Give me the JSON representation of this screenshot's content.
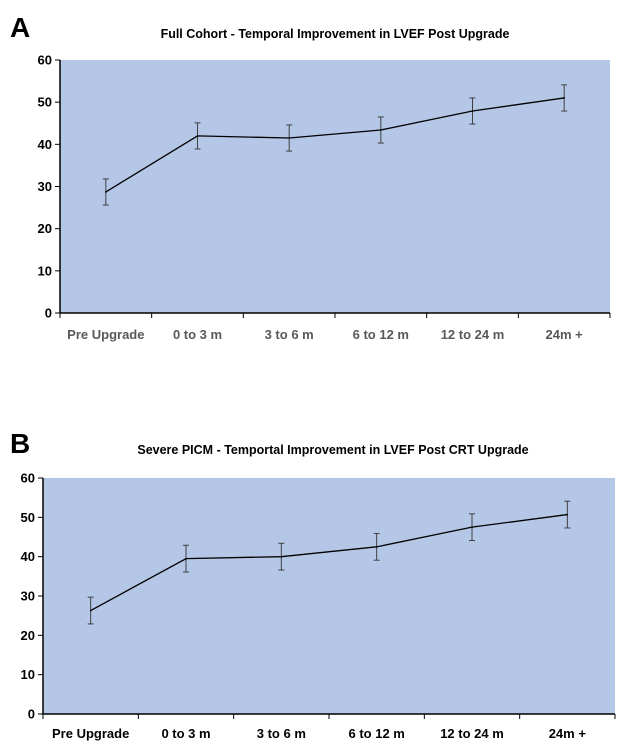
{
  "chart_data": [
    {
      "type": "line",
      "panel_label": "A",
      "title": "Full Cohort - Temporal Improvement in LVEF Post Upgrade",
      "categories": [
        "Pre Upgrade",
        "0 to 3 m",
        "3 to 6 m",
        "6 to 12 m",
        "12 to 24 m",
        "24m +"
      ],
      "values": [
        28.7,
        42,
        41.5,
        43.4,
        47.9,
        51
      ],
      "error": [
        3.1,
        3.1,
        3.1,
        3.1,
        3.1,
        3.1
      ],
      "ylim": [
        0,
        60
      ],
      "yticks": [
        0,
        10,
        20,
        30,
        40,
        50,
        60
      ],
      "ylabel": "",
      "xlabel": "",
      "plot_background": "#b4c7e7",
      "line_color": "#000000",
      "grid": false
    },
    {
      "type": "line",
      "panel_label": "B",
      "title": "Severe PICM - Temportal Improvement in LVEF Post CRT Upgrade",
      "categories": [
        "Pre Upgrade",
        "0 to 3 m",
        "3 to 6 m",
        "6 to 12 m",
        "12 to 24 m",
        "24m +"
      ],
      "values": [
        26.3,
        39.5,
        40,
        42.5,
        47.5,
        50.7
      ],
      "error": [
        3.4,
        3.4,
        3.4,
        3.4,
        3.4,
        3.4
      ],
      "ylim": [
        0,
        60
      ],
      "yticks": [
        0,
        10,
        20,
        30,
        40,
        50,
        60
      ],
      "ylabel": "",
      "xlabel": "",
      "plot_background": "#b4c7e7",
      "line_color": "#000000",
      "grid": false
    }
  ]
}
